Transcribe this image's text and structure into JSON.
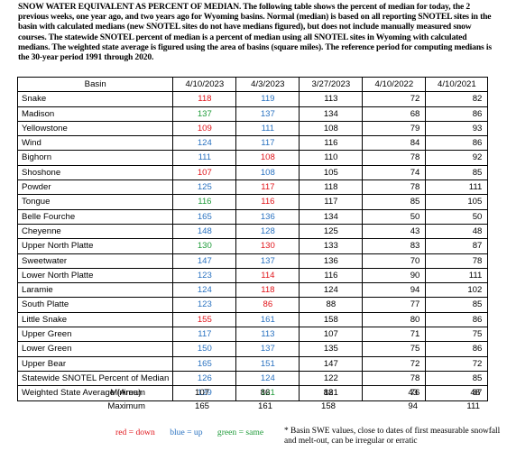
{
  "intro": "SNOW WATER EQUIVALENT AS PERCENT OF MEDIAN. The following table shows the percent of median for today, the 2 previous weeks, one year ago, and two years ago for Wyoming basins. Normal (median) is based on all reporting SNOTEL sites in the basin with calculated medians (new SNOTEL sites do not have medians figured), but does not include manually measured snow courses. The statewide SNOTEL percent of median is a percent of median using all SNOTEL sites in Wyoming with calculated medians. The weighted state average is figured using the area of basins (square miles). The reference period for computing medians is the 30-year period 1991 through 2020.",
  "colors": {
    "down": "#e0151b",
    "up": "#2a72c0",
    "same": "#1f9b3a"
  },
  "table": {
    "headers": [
      "Basin",
      "4/10/2023",
      "4/3/2023",
      "3/27/2023",
      "4/10/2022",
      "4/10/2021"
    ],
    "rows": [
      {
        "basin": "Snake",
        "v": [
          "118",
          "119",
          "113",
          "72",
          "82"
        ],
        "c": [
          "red",
          "blue"
        ]
      },
      {
        "basin": "Madison",
        "v": [
          "137",
          "137",
          "134",
          "68",
          "86"
        ],
        "c": [
          "green",
          "blue"
        ]
      },
      {
        "basin": "Yellowstone",
        "v": [
          "109",
          "111",
          "108",
          "79",
          "93"
        ],
        "c": [
          "red",
          "blue"
        ]
      },
      {
        "basin": "Wind",
        "v": [
          "124",
          "117",
          "116",
          "84",
          "86"
        ],
        "c": [
          "blue",
          "blue"
        ]
      },
      {
        "basin": "Bighorn",
        "v": [
          "111",
          "108",
          "110",
          "78",
          "92"
        ],
        "c": [
          "blue",
          "red"
        ]
      },
      {
        "basin": "Shoshone",
        "v": [
          "107",
          "108",
          "105",
          "74",
          "85"
        ],
        "c": [
          "red",
          "blue"
        ]
      },
      {
        "basin": "Powder",
        "v": [
          "125",
          "117",
          "118",
          "78",
          "111"
        ],
        "c": [
          "blue",
          "red"
        ]
      },
      {
        "basin": "Tongue",
        "v": [
          "116",
          "116",
          "117",
          "85",
          "105"
        ],
        "c": [
          "green",
          "red"
        ]
      },
      {
        "basin": "Belle Fourche",
        "v": [
          "165",
          "136",
          "134",
          "50",
          "50"
        ],
        "c": [
          "blue",
          "blue"
        ]
      },
      {
        "basin": "Cheyenne",
        "v": [
          "148",
          "128",
          "125",
          "43",
          "48"
        ],
        "c": [
          "blue",
          "blue"
        ]
      },
      {
        "basin": "Upper North Platte",
        "v": [
          "130",
          "130",
          "133",
          "83",
          "87"
        ],
        "c": [
          "green",
          "red"
        ]
      },
      {
        "basin": "Sweetwater",
        "v": [
          "147",
          "137",
          "136",
          "70",
          "78"
        ],
        "c": [
          "blue",
          "blue"
        ]
      },
      {
        "basin": "Lower North Platte",
        "v": [
          "123",
          "114",
          "116",
          "90",
          "111"
        ],
        "c": [
          "blue",
          "red"
        ]
      },
      {
        "basin": "Laramie",
        "v": [
          "124",
          "118",
          "124",
          "94",
          "102"
        ],
        "c": [
          "blue",
          "red"
        ]
      },
      {
        "basin": "South Platte",
        "v": [
          "123",
          "86",
          "88",
          "77",
          "85"
        ],
        "c": [
          "blue",
          "red"
        ]
      },
      {
        "basin": "Little Snake",
        "v": [
          "155",
          "161",
          "158",
          "80",
          "86"
        ],
        "c": [
          "red",
          "blue"
        ]
      },
      {
        "basin": "Upper Green",
        "v": [
          "117",
          "113",
          "107",
          "71",
          "75"
        ],
        "c": [
          "blue",
          "blue"
        ]
      },
      {
        "basin": "Lower Green",
        "v": [
          "150",
          "137",
          "135",
          "75",
          "86"
        ],
        "c": [
          "blue",
          "blue"
        ]
      },
      {
        "basin": "Upper Bear",
        "v": [
          "165",
          "151",
          "147",
          "72",
          "72"
        ],
        "c": [
          "blue",
          "blue"
        ]
      },
      {
        "basin": "Statewide SNOTEL Percent of Median",
        "v": [
          "126",
          "124",
          "122",
          "78",
          "85"
        ],
        "c": [
          "blue",
          "blue"
        ]
      },
      {
        "basin": "Weighted State Average (Area)",
        "v": [
          "129",
          "121",
          "121",
          "76",
          "87"
        ],
        "c": [
          "blue",
          "green"
        ]
      }
    ]
  },
  "summary": [
    {
      "label": "Minimum",
      "v": [
        "107",
        "86",
        "88",
        "43",
        "48"
      ]
    },
    {
      "label": "Maximum",
      "v": [
        "165",
        "161",
        "158",
        "94",
        "111"
      ]
    }
  ],
  "legend": {
    "down": "red = down",
    "up": "blue = up",
    "same": "green = same"
  },
  "note": "* Basin SWE values, close to dates of first measurable snowfall and melt-out, can be irregular or erratic"
}
